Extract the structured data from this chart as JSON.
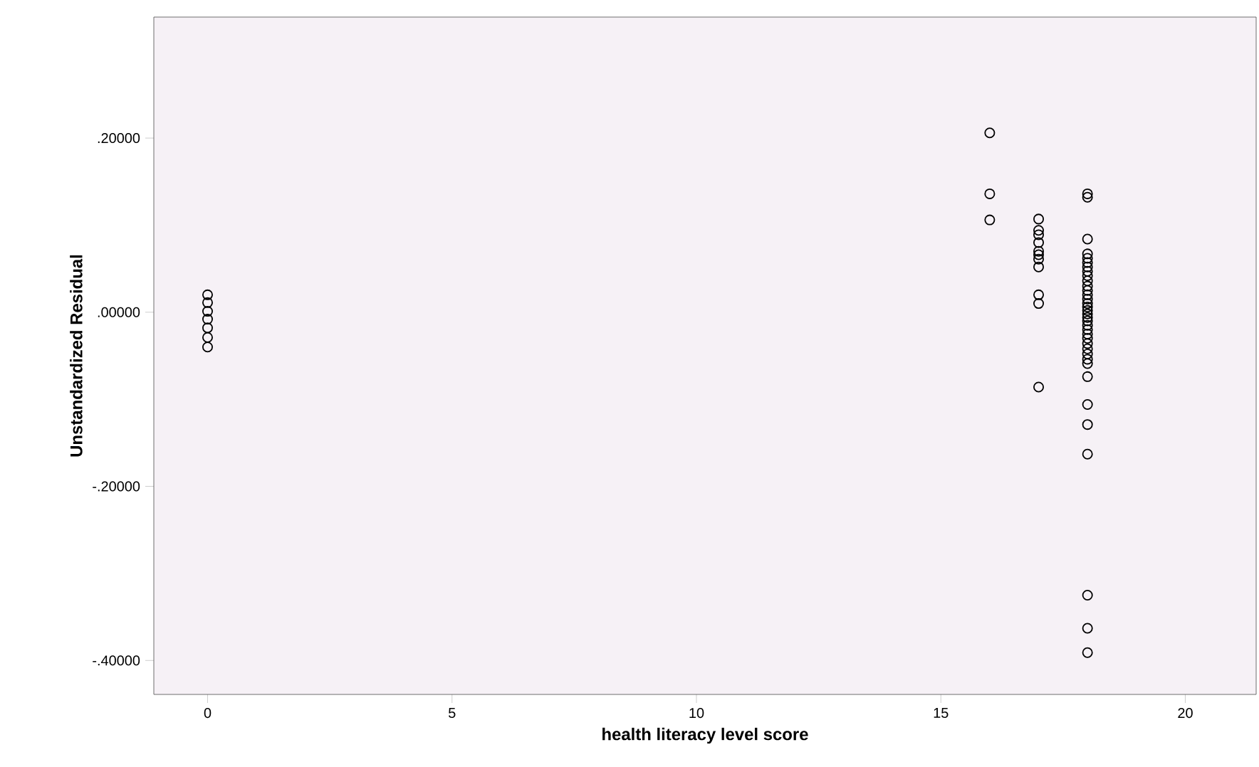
{
  "chart_data": {
    "type": "scatter",
    "xlabel": "health literacy level score",
    "ylabel": "Unstandardized Residual",
    "marker": "circle",
    "color": "#000000",
    "xlim": [
      -1.1,
      21.45
    ],
    "ylim": [
      -0.439,
      0.339
    ],
    "xticks": [
      0,
      5,
      10,
      15,
      20
    ],
    "yticks": [
      {
        "value": -0.4,
        "label": "-.40000"
      },
      {
        "value": -0.2,
        "label": "-.20000"
      },
      {
        "value": 0,
        "label": ".00000"
      },
      {
        "value": 0.2,
        "label": ".20000"
      }
    ],
    "x": [
      0,
      0,
      0,
      0,
      0,
      0,
      0,
      16,
      16,
      16,
      17,
      17,
      17,
      17,
      17,
      17,
      17,
      17,
      17,
      17,
      17,
      18,
      18,
      18,
      18,
      18,
      18,
      18,
      18,
      18,
      18,
      18,
      18,
      18,
      18,
      18,
      18,
      18,
      18,
      18,
      18,
      18,
      18,
      18,
      18,
      18,
      18,
      18,
      18,
      18,
      18,
      18,
      18,
      18,
      18,
      18,
      18
    ],
    "values": [
      0.02,
      0.011,
      0.001,
      -0.008,
      -0.018,
      -0.029,
      -0.04,
      0.206,
      0.136,
      0.106,
      0.107,
      0.094,
      0.089,
      0.08,
      0.07,
      0.066,
      0.061,
      0.052,
      0.02,
      0.01,
      -0.086,
      0.136,
      0.132,
      0.084,
      0.067,
      0.062,
      0.057,
      0.052,
      0.047,
      0.042,
      0.036,
      0.03,
      0.025,
      0.02,
      0.015,
      0.01,
      0.006,
      0.002,
      -0.002,
      -0.006,
      -0.01,
      -0.015,
      -0.02,
      -0.025,
      -0.03,
      -0.036,
      -0.042,
      -0.048,
      -0.054,
      -0.059,
      -0.074,
      -0.106,
      -0.129,
      -0.163,
      -0.325,
      -0.363,
      -0.391
    ]
  }
}
